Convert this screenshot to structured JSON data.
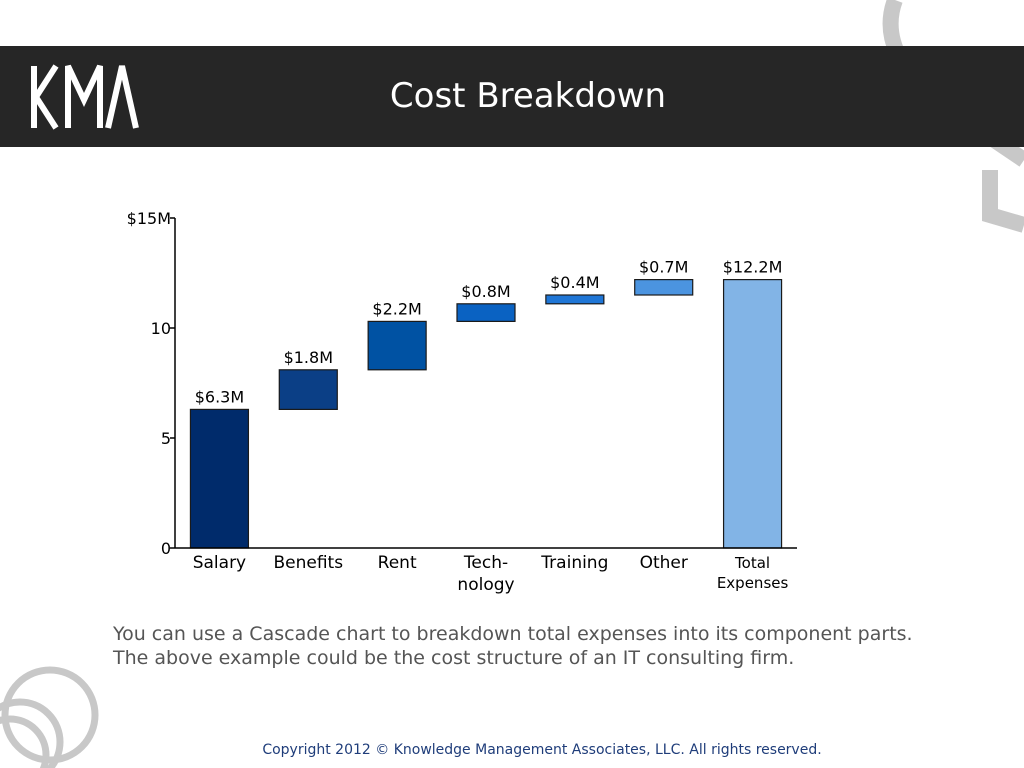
{
  "header": {
    "logo_text": "KMA",
    "title": "Cost Breakdown"
  },
  "chart_data": {
    "type": "bar",
    "subtype": "waterfall",
    "categories": [
      "Salary",
      "Benefits",
      "Rent",
      "Tech-\nnology",
      "Training",
      "Other",
      "Total\nExpenses"
    ],
    "series": [
      {
        "values": [
          6.3,
          1.8,
          2.2,
          0.8,
          0.4,
          0.7,
          12.2
        ],
        "bases": [
          0,
          6.3,
          8.1,
          10.3,
          11.1,
          11.5,
          0
        ],
        "data_labels": [
          "$6.3M",
          "$1.8M",
          "$2.2M",
          "$0.8M",
          "$0.4M",
          "$0.7M",
          "$12.2M"
        ],
        "colors": [
          "#002b6b",
          "#0b3f86",
          "#0052a3",
          "#0a62c2",
          "#1f76d6",
          "#4b94e0",
          "#82b4e6"
        ]
      }
    ],
    "yticks": [
      0,
      5,
      10,
      15
    ],
    "ytick_labels": [
      "0",
      "5",
      "10",
      "$15M"
    ],
    "ylim": [
      0,
      15
    ],
    "grid": false,
    "legend": "none",
    "xlabel": "",
    "ylabel": ""
  },
  "caption": "You can use a Cascade chart to breakdown total expenses into its component parts.  The above example could be the cost structure of an IT consulting firm.",
  "footer": "Copyright 2012 © Knowledge Management Associates, LLC.  All rights reserved."
}
